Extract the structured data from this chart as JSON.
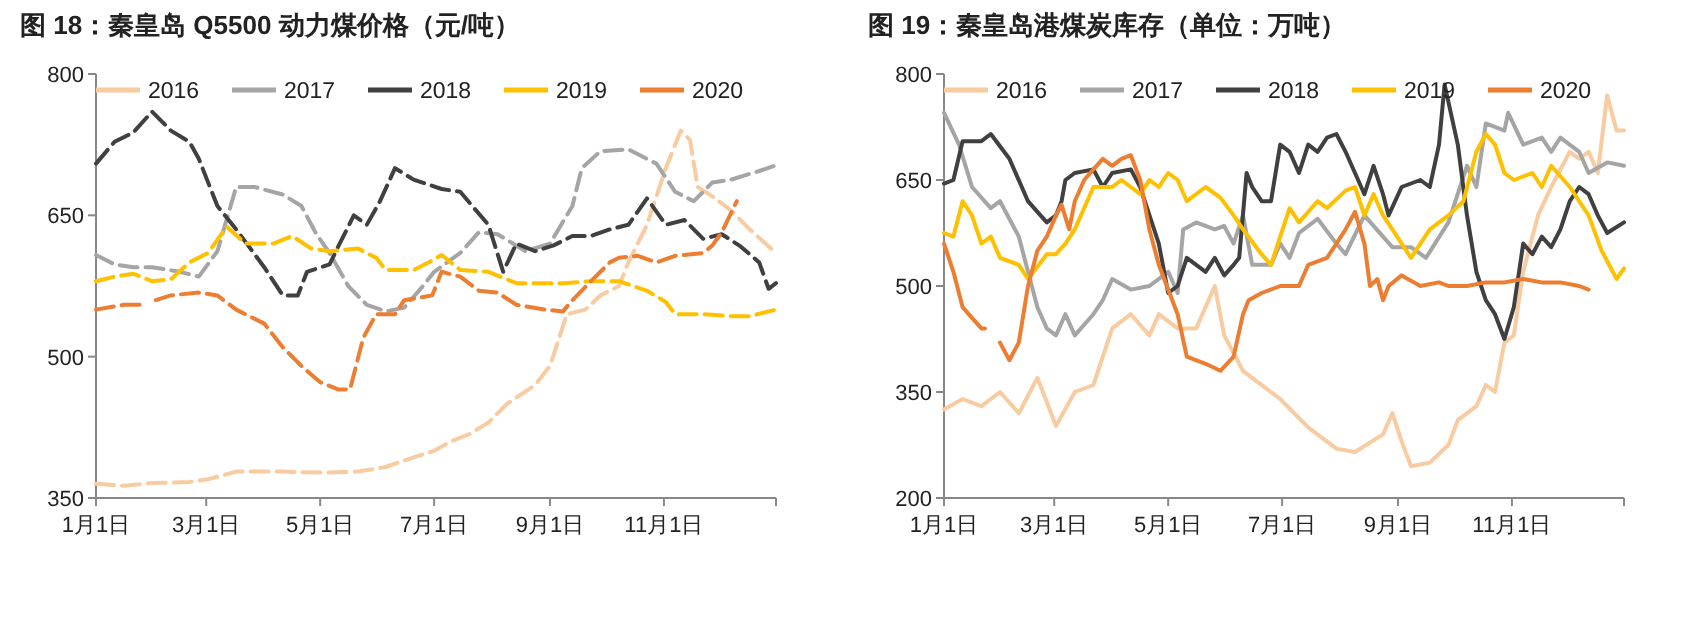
{
  "chart_data": [
    {
      "type": "line",
      "title": "图 18：秦皇岛 Q5500 动力煤价格（元/吨）",
      "xlim": [
        "--01-01",
        "--12-31"
      ],
      "xticks": [
        {
          "value": "--01-01",
          "label": "1月1日"
        },
        {
          "value": "--03-01",
          "label": "3月1日"
        },
        {
          "value": "--05-01",
          "label": "5月1日"
        },
        {
          "value": "--07-01",
          "label": "7月1日"
        },
        {
          "value": "--09-01",
          "label": "9月1日"
        },
        {
          "value": "--11-01",
          "label": "11月1日"
        }
      ],
      "ylim": [
        350,
        800
      ],
      "yticks": [
        350,
        500,
        650,
        800
      ],
      "legend": "top",
      "line_style": "dashed",
      "grid": false,
      "series": [
        {
          "name": "2016",
          "color": "#f8cba0",
          "x": [
            "--01-01",
            "--01-16",
            "--01-31",
            "--02-20",
            "--03-02",
            "--03-17",
            "--04-11",
            "--05-01",
            "--05-21",
            "--06-05",
            "--06-20",
            "--07-01",
            "--07-10",
            "--07-20",
            "--07-30",
            "--08-09",
            "--08-24",
            "--09-01",
            "--09-06",
            "--09-10",
            "--09-20",
            "--09-28",
            "--10-08",
            "--10-13",
            "--10-23",
            "--11-02",
            "--11-10",
            "--11-15",
            "--11-19",
            "--11-27",
            "--12-07",
            "--12-17",
            "--12-31"
          ],
          "values": [
            365,
            363,
            366,
            367,
            370,
            378,
            378,
            377,
            378,
            383,
            393,
            400,
            410,
            418,
            430,
            450,
            470,
            490,
            520,
            545,
            550,
            565,
            575,
            600,
            640,
            700,
            740,
            730,
            680,
            670,
            655,
            635,
            610
          ]
        },
        {
          "name": "2017",
          "color": "#a5a5a5",
          "x": [
            "--01-01",
            "--01-11",
            "--01-21",
            "--01-31",
            "--02-15",
            "--02-25",
            "--03-07",
            "--03-17",
            "--03-27",
            "--04-11",
            "--04-21",
            "--04-29",
            "--05-06",
            "--05-16",
            "--05-26",
            "--06-05",
            "--06-15",
            "--06-25",
            "--07-01",
            "--07-15",
            "--07-25",
            "--08-04",
            "--08-19",
            "--09-01",
            "--09-13",
            "--09-18",
            "--09-28",
            "--10-13",
            "--10-28",
            "--11-07",
            "--11-17",
            "--11-27",
            "--12-07",
            "--12-22",
            "--12-31"
          ],
          "values": [
            608,
            598,
            595,
            595,
            590,
            585,
            612,
            680,
            680,
            672,
            660,
            630,
            610,
            575,
            555,
            548,
            552,
            575,
            590,
            610,
            632,
            630,
            612,
            620,
            660,
            700,
            718,
            720,
            705,
            675,
            665,
            685,
            688,
            697,
            703
          ]
        },
        {
          "name": "2018",
          "color": "#404040",
          "x": [
            "--01-01",
            "--01-11",
            "--01-21",
            "--01-31",
            "--02-10",
            "--02-20",
            "--02-25",
            "--03-07",
            "--03-17",
            "--04-01",
            "--04-11",
            "--04-19",
            "--04-24",
            "--05-06",
            "--05-11",
            "--05-19",
            "--05-26",
            "--06-02",
            "--06-10",
            "--06-20",
            "--07-05",
            "--07-15",
            "--07-30",
            "--08-07",
            "--08-14",
            "--08-24",
            "--09-03",
            "--09-13",
            "--09-23",
            "--10-03",
            "--10-13",
            "--10-23",
            "--11-02",
            "--11-12",
            "--11-22",
            "--12-02",
            "--12-12",
            "--12-22",
            "--12-27",
            "--12-31"
          ],
          "values": [
            705,
            728,
            738,
            760,
            740,
            728,
            710,
            660,
            635,
            595,
            565,
            565,
            590,
            598,
            618,
            650,
            640,
            665,
            700,
            688,
            678,
            675,
            640,
            590,
            620,
            612,
            618,
            628,
            628,
            635,
            640,
            668,
            640,
            645,
            625,
            630,
            617,
            600,
            572,
            578
          ]
        },
        {
          "name": "2019",
          "color": "#ffc000",
          "x": [
            "--01-01",
            "--01-11",
            "--01-21",
            "--01-31",
            "--02-10",
            "--02-20",
            "--03-02",
            "--03-12",
            "--03-22",
            "--04-06",
            "--04-16",
            "--04-26",
            "--05-06",
            "--05-21",
            "--05-31",
            "--06-05",
            "--06-20",
            "--06-30",
            "--07-05",
            "--07-15",
            "--07-30",
            "--08-14",
            "--08-29",
            "--09-08",
            "--09-23",
            "--10-08",
            "--10-23",
            "--11-02",
            "--11-07",
            "--11-22",
            "--12-07",
            "--12-17",
            "--12-31"
          ],
          "values": [
            580,
            585,
            588,
            580,
            582,
            600,
            610,
            638,
            620,
            620,
            628,
            615,
            612,
            615,
            605,
            592,
            592,
            602,
            608,
            592,
            590,
            578,
            578,
            578,
            580,
            580,
            570,
            558,
            545,
            545,
            543,
            543,
            550
          ]
        },
        {
          "name": "2020",
          "color": "#ed7d31",
          "x": [
            "--01-01",
            "--01-16",
            "--01-25",
            "--01-29",
            "--02-02",
            "--02-10",
            "--02-25",
            "--03-07",
            "--03-17",
            "--04-01",
            "--04-11",
            "--04-21",
            "--05-01",
            "--05-11",
            "--05-17",
            "--05-24",
            "--05-31",
            "--06-10",
            "--06-15",
            "--06-30",
            "--07-05",
            "--07-15",
            "--07-25",
            "--08-04",
            "--08-14",
            "--08-29",
            "--09-08",
            "--09-13",
            "--09-23",
            "--10-03",
            "--10-08",
            "--10-18",
            "--10-28",
            "--11-07",
            "--11-22",
            "--11-27",
            "--12-02",
            "--12-10"
          ],
          "values": [
            550,
            555,
            555,
            null,
            560,
            565,
            568,
            565,
            550,
            535,
            510,
            490,
            473,
            465,
            465,
            520,
            545,
            545,
            560,
            565,
            590,
            585,
            570,
            568,
            555,
            550,
            548,
            560,
            580,
            600,
            605,
            607,
            600,
            607,
            610,
            618,
            632,
            665
          ]
        }
      ]
    },
    {
      "type": "line",
      "title": "图 19：秦皇岛港煤炭库存（单位：万吨）",
      "xlim": [
        "--01-01",
        "--12-31"
      ],
      "xticks": [
        {
          "value": "--01-01",
          "label": "1月1日"
        },
        {
          "value": "--03-01",
          "label": "3月1日"
        },
        {
          "value": "--05-01",
          "label": "5月1日"
        },
        {
          "value": "--07-01",
          "label": "7月1日"
        },
        {
          "value": "--09-01",
          "label": "9月1日"
        },
        {
          "value": "--11-01",
          "label": "11月1日"
        }
      ],
      "ylim": [
        200,
        800
      ],
      "yticks": [
        200,
        350,
        500,
        650,
        800
      ],
      "legend": "top",
      "line_style": "solid",
      "grid": false,
      "series": [
        {
          "name": "2016",
          "color": "#f8cba0",
          "x": [
            "--01-01",
            "--01-11",
            "--01-21",
            "--01-31",
            "--02-10",
            "--02-20",
            "--03-02",
            "--03-12",
            "--03-22",
            "--04-01",
            "--04-11",
            "--04-21",
            "--04-26",
            "--05-06",
            "--05-16",
            "--05-26",
            "--05-31",
            "--06-10",
            "--06-15",
            "--06-30",
            "--07-15",
            "--07-30",
            "--08-09",
            "--08-24",
            "--08-29",
            "--09-03",
            "--09-08",
            "--09-18",
            "--09-28",
            "--10-03",
            "--10-13",
            "--10-18",
            "--10-23",
            "--10-28",
            "--11-02",
            "--11-07",
            "--11-15",
            "--11-22",
            "--12-02",
            "--12-07",
            "--12-12",
            "--12-17",
            "--12-22",
            "--12-27",
            "--12-31"
          ],
          "values": [
            325,
            340,
            330,
            350,
            320,
            370,
            302,
            350,
            360,
            440,
            460,
            430,
            460,
            440,
            440,
            500,
            430,
            380,
            370,
            340,
            300,
            270,
            265,
            290,
            320,
            280,
            245,
            250,
            275,
            310,
            330,
            360,
            350,
            420,
            430,
            520,
            600,
            640,
            690,
            680,
            690,
            660,
            770,
            720,
            720
          ]
        },
        {
          "name": "2017",
          "color": "#a5a5a5",
          "x": [
            "--01-01",
            "--01-09",
            "--01-16",
            "--01-26",
            "--01-31",
            "--02-10",
            "--02-20",
            "--02-25",
            "--03-02",
            "--03-07",
            "--03-12",
            "--03-22",
            "--03-27",
            "--04-01",
            "--04-11",
            "--04-21",
            "--05-01",
            "--05-06",
            "--05-09",
            "--05-16",
            "--05-26",
            "--05-31",
            "--06-05",
            "--06-10",
            "--06-15",
            "--06-25",
            "--06-30",
            "--07-05",
            "--07-10",
            "--07-20",
            "--07-30",
            "--08-04",
            "--08-14",
            "--08-24",
            "--08-29",
            "--09-08",
            "--09-16",
            "--09-28",
            "--10-08",
            "--10-13",
            "--10-18",
            "--10-28",
            "--10-30",
            "--11-07",
            "--11-17",
            "--11-22",
            "--11-27",
            "--12-07",
            "--12-12",
            "--12-22",
            "--12-31"
          ],
          "values": [
            745,
            700,
            640,
            610,
            620,
            570,
            470,
            440,
            430,
            460,
            430,
            460,
            480,
            510,
            495,
            500,
            520,
            490,
            580,
            590,
            580,
            585,
            560,
            600,
            530,
            530,
            560,
            540,
            575,
            595,
            560,
            545,
            600,
            570,
            555,
            555,
            540,
            590,
            670,
            640,
            730,
            720,
            745,
            700,
            710,
            690,
            710,
            690,
            660,
            675,
            670
          ]
        },
        {
          "name": "2018",
          "color": "#404040",
          "x": [
            "--01-01",
            "--01-06",
            "--01-11",
            "--01-21",
            "--01-26",
            "--02-05",
            "--02-15",
            "--02-20",
            "--02-25",
            "--03-02",
            "--03-05",
            "--03-07",
            "--03-12",
            "--03-22",
            "--03-27",
            "--04-01",
            "--04-11",
            "--04-16",
            "--04-26",
            "--05-01",
            "--05-06",
            "--05-11",
            "--05-21",
            "--05-26",
            "--05-31",
            "--06-05",
            "--06-08",
            "--06-12",
            "--06-15",
            "--06-20",
            "--06-25",
            "--06-30",
            "--07-05",
            "--07-10",
            "--07-15",
            "--07-20",
            "--07-25",
            "--07-30",
            "--08-04",
            "--08-09",
            "--08-14",
            "--08-19",
            "--08-24",
            "--08-27",
            "--09-03",
            "--09-13",
            "--09-18",
            "--09-23",
            "--09-26",
            "--10-03",
            "--10-08",
            "--10-13",
            "--10-18",
            "--10-23",
            "--10-28",
            "--11-02",
            "--11-07",
            "--11-12",
            "--11-17",
            "--11-22",
            "--11-27",
            "--12-02",
            "--12-07",
            "--12-12",
            "--12-17",
            "--12-22",
            "--12-31"
          ],
          "values": [
            645,
            650,
            705,
            705,
            715,
            680,
            620,
            605,
            590,
            600,
            620,
            650,
            660,
            665,
            640,
            660,
            665,
            640,
            560,
            490,
            500,
            540,
            520,
            540,
            515,
            530,
            540,
            660,
            640,
            620,
            620,
            700,
            690,
            660,
            700,
            690,
            710,
            715,
            690,
            660,
            630,
            670,
            630,
            600,
            640,
            650,
            640,
            700,
            785,
            700,
            600,
            520,
            480,
            460,
            425,
            470,
            560,
            545,
            570,
            555,
            580,
            620,
            640,
            630,
            600,
            575,
            590
          ]
        },
        {
          "name": "2019",
          "color": "#ffc000",
          "x": [
            "--01-01",
            "--01-06",
            "--01-11",
            "--01-16",
            "--01-21",
            "--01-26",
            "--01-31",
            "--02-10",
            "--02-15",
            "--02-25",
            "--03-02",
            "--03-07",
            "--03-12",
            "--03-22",
            "--04-01",
            "--04-06",
            "--04-11",
            "--04-16",
            "--04-21",
            "--04-26",
            "--05-01",
            "--05-06",
            "--05-11",
            "--05-21",
            "--05-29",
            "--06-05",
            "--06-10",
            "--06-20",
            "--06-25",
            "--06-30",
            "--07-05",
            "--07-10",
            "--07-20",
            "--07-25",
            "--08-04",
            "--08-09",
            "--08-14",
            "--08-19",
            "--08-24",
            "--08-29",
            "--09-03",
            "--09-08",
            "--09-13",
            "--09-18",
            "--09-28",
            "--10-06",
            "--10-13",
            "--10-18",
            "--10-23",
            "--10-28",
            "--11-02",
            "--11-12",
            "--11-17",
            "--11-22",
            "--12-02",
            "--12-12",
            "--12-19",
            "--12-27",
            "--12-31"
          ],
          "values": [
            575,
            570,
            620,
            600,
            560,
            570,
            540,
            530,
            510,
            545,
            545,
            560,
            580,
            640,
            640,
            650,
            640,
            630,
            650,
            640,
            660,
            650,
            620,
            640,
            625,
            600,
            580,
            545,
            530,
            570,
            610,
            590,
            620,
            610,
            635,
            640,
            600,
            630,
            600,
            580,
            560,
            540,
            560,
            580,
            600,
            620,
            690,
            715,
            700,
            660,
            650,
            660,
            640,
            670,
            640,
            600,
            550,
            510,
            525
          ]
        },
        {
          "name": "2020",
          "color": "#ed7d31",
          "x": [
            "--01-01",
            "--01-06",
            "--01-11",
            "--01-16",
            "--01-21",
            "--01-23",
            "--01-27",
            "--01-31",
            "--02-05",
            "--02-10",
            "--02-15",
            "--02-20",
            "--02-25",
            "--03-02",
            "--03-05",
            "--03-09",
            "--03-12",
            "--03-17",
            "--03-22",
            "--03-27",
            "--04-01",
            "--04-06",
            "--04-11",
            "--04-16",
            "--04-21",
            "--04-26",
            "--05-06",
            "--05-11",
            "--05-21",
            "--05-29",
            "--06-05",
            "--06-10",
            "--06-13",
            "--06-20",
            "--06-30",
            "--07-10",
            "--07-15",
            "--07-25",
            "--07-30",
            "--08-04",
            "--08-09",
            "--08-14",
            "--08-17",
            "--08-21",
            "--08-24",
            "--08-27",
            "--09-03",
            "--09-13",
            "--09-23",
            "--09-28",
            "--10-08",
            "--10-18",
            "--10-28",
            "--11-07",
            "--11-17",
            "--11-27",
            "--12-07",
            "--12-12"
          ],
          "values": [
            560,
            520,
            470,
            455,
            440,
            440,
            null,
            420,
            395,
            420,
            500,
            550,
            570,
            600,
            615,
            580,
            620,
            650,
            665,
            680,
            670,
            680,
            685,
            650,
            580,
            530,
            460,
            400,
            390,
            380,
            400,
            460,
            480,
            490,
            500,
            500,
            530,
            540,
            560,
            580,
            605,
            560,
            500,
            510,
            480,
            500,
            515,
            500,
            505,
            500,
            500,
            505,
            505,
            510,
            505,
            505,
            500,
            495
          ]
        }
      ]
    }
  ]
}
